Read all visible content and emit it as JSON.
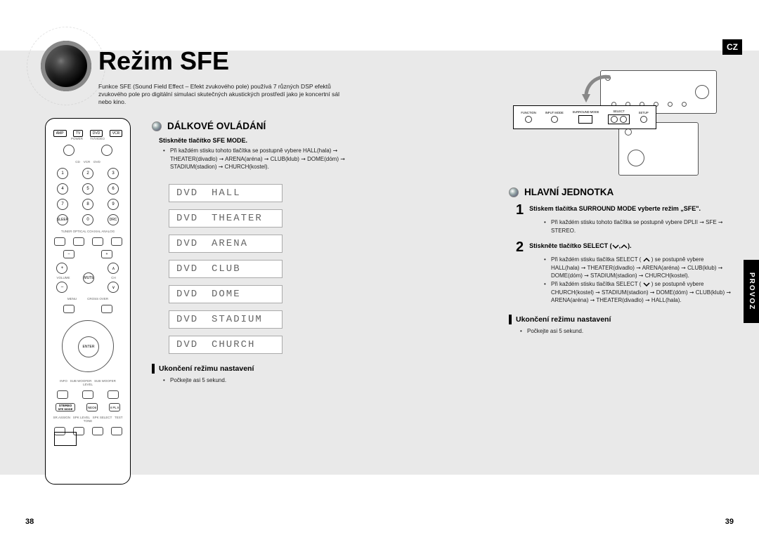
{
  "lang_badge": "CZ",
  "side_tab": "PROVOZ",
  "title": "Režim SFE",
  "intro": "Funkce SFE (Sound Field Effect – Efekt zvukového pole) používá 7 různých DSP efektů zvukového pole pro digitální simulaci skutečných akustických prostředí jako je koncertní sál nebo kino.",
  "remote_top_buttons": [
    "AMP",
    "TV",
    "DVD",
    "VCR"
  ],
  "remote_numpad": [
    "1",
    "2",
    "3",
    "4",
    "5",
    "6",
    "7",
    "8",
    "9",
    "0"
  ],
  "remote_sfe_label": "SFE MODE",
  "left": {
    "heading": "DÁLKOVÉ OVLÁDÁNÍ",
    "step_bold": "Stiskněte tlačítko SFE MODE.",
    "step_bullet": "Při každém stisku tohoto tlačítka se postupně vybere HALL(hala) ➞ THEATER(divadlo) ➞ ARENA(aréna) ➞ CLUB(klub) ➞ DOME(dóm) ➞ STADIUM(stadion) ➞ CHURCH(kostel).",
    "displays_src": "DVD",
    "displays": [
      "HALL",
      "THEATER",
      "ARENA",
      "CLUB",
      "DOME",
      "STADIUM",
      "CHURCH"
    ],
    "end_heading": "Ukončení režimu nastavení",
    "end_bullet": "Počkejte asi 5 sekund."
  },
  "right": {
    "heading": "HLAVNÍ JEDNOTKA",
    "step1_bold": "Stiskem tlačítka SURROUND MODE vyberte režim „SFE\".",
    "step1_bullet": "Při každém stisku tohoto tlačítka se postupně vybere DPLII ➞ SFE ➞ STEREO.",
    "step2_bold_a": "Stiskněte tlačítko SELECT (",
    "step2_bold_b": ").",
    "step2_bullet1": "Při každém stisku tlačítka SELECT (    ) se postupně vybere HALL(hala) ➞ THEATER(divadlo) ➞ ARENA(aréna) ➞ CLUB(klub) ➞ DOME(dóm) ➞ STADIUM(stadion) ➞ CHURCH(kostel).",
    "step2_bullet2": "Při každém stisku tlačítka SELECT (    ) se postupně vybere CHURCH(kostel) ➞ STADIUM(stadion) ➞ DOME(dóm) ➞ CLUB(klub) ➞ ARENA(aréna) ➞ THEATER(divadlo) ➞ HALL(hala).",
    "end_heading": "Ukončení režimu nastavení",
    "end_bullet": "Počkejte asi 5 sekund."
  },
  "panel_labels": [
    "FUNCTION",
    "INPUT MODE",
    "SURROUND MODE",
    "SELECT",
    "SETUP"
  ],
  "page_left": "38",
  "page_right": "39",
  "colors": {
    "band": "#e9e9e9",
    "display_text": "#666666",
    "display_border": "#aaaaaa"
  }
}
